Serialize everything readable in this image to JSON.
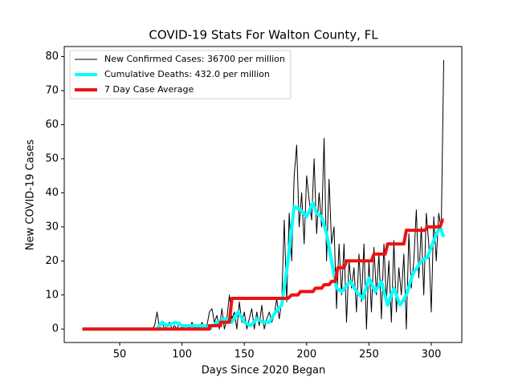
{
  "chart_data": {
    "type": "line",
    "title": "COVID-19 Stats For Walton County, FL",
    "x_label": "Days Since 2020 Began",
    "y_label": "New COVID-19 Cases",
    "xlim": [
      5.5,
      324.5
    ],
    "xticks": [
      50,
      100,
      150,
      200,
      250,
      300
    ],
    "ylim": [
      -3.95,
      82.95
    ],
    "yticks": [
      0,
      10,
      20,
      30,
      40,
      50,
      60,
      70,
      80
    ],
    "legend": "upper left",
    "series": [
      {
        "name": "New Confirmed Cases: 36700 per million",
        "color": "#000000",
        "width": 1,
        "x": [
          20,
          76,
          78,
          80,
          82,
          84,
          86,
          88,
          90,
          92,
          94,
          96,
          98,
          100,
          102,
          104,
          106,
          108,
          110,
          112,
          114,
          116,
          118,
          120,
          122,
          124,
          126,
          128,
          130,
          132,
          134,
          136,
          138,
          140,
          142,
          144,
          146,
          148,
          150,
          152,
          154,
          156,
          158,
          160,
          162,
          164,
          166,
          168,
          170,
          172,
          174,
          176,
          178,
          180,
          182,
          184,
          186,
          188,
          190,
          192,
          194,
          196,
          198,
          200,
          202,
          204,
          206,
          208,
          210,
          212,
          214,
          216,
          218,
          220,
          222,
          224,
          226,
          228,
          230,
          232,
          234,
          236,
          238,
          240,
          242,
          244,
          246,
          248,
          250,
          252,
          254,
          256,
          258,
          260,
          262,
          264,
          266,
          268,
          270,
          272,
          274,
          276,
          278,
          280,
          282,
          284,
          286,
          288,
          290,
          292,
          294,
          296,
          298,
          300,
          302,
          304,
          306,
          308,
          310
        ],
        "values": [
          0,
          0,
          1,
          5,
          0,
          2,
          0,
          1,
          2,
          0,
          1,
          0,
          2,
          0,
          1,
          1,
          0,
          2,
          0,
          1,
          0,
          2,
          0,
          1,
          5,
          6,
          2,
          4,
          0,
          6,
          0,
          3,
          10,
          3,
          5,
          0,
          8,
          2,
          5,
          0,
          3,
          6,
          0,
          5,
          1,
          7,
          0,
          3,
          5,
          2,
          4,
          9,
          3,
          8,
          32,
          8,
          34,
          20,
          45,
          54,
          30,
          40,
          25,
          45,
          38,
          32,
          50,
          28,
          40,
          30,
          56,
          20,
          44,
          25,
          30,
          6,
          25,
          10,
          25,
          2,
          20,
          12,
          18,
          5,
          22,
          8,
          25,
          0,
          20,
          5,
          24,
          10,
          22,
          3,
          25,
          8,
          20,
          2,
          26,
          5,
          18,
          10,
          22,
          0,
          28,
          12,
          20,
          35,
          15,
          30,
          10,
          34,
          25,
          5,
          33,
          20,
          34,
          29,
          79
        ]
      },
      {
        "name": "Cumulative Deaths: 432.0 per million",
        "color": "#00ffff",
        "width": 4,
        "x": [
          20,
          80,
          84,
          88,
          95,
          100,
          110,
          118,
          122,
          128,
          135,
          140,
          145,
          150,
          155,
          160,
          165,
          170,
          175,
          180,
          185,
          190,
          195,
          200,
          205,
          208,
          212,
          216,
          220,
          224,
          228,
          235,
          240,
          245,
          250,
          255,
          260,
          265,
          270,
          275,
          280,
          285,
          292,
          297,
          303,
          307,
          310
        ],
        "values": [
          0,
          0,
          2,
          1,
          2,
          1,
          1,
          1,
          0,
          2,
          3,
          2,
          5,
          2,
          1,
          3,
          2,
          2,
          5,
          7,
          20,
          36,
          35,
          33,
          37,
          34,
          33,
          28,
          20,
          12,
          11,
          14,
          11,
          9,
          15,
          11,
          14,
          7,
          12,
          7,
          10,
          16,
          20,
          21,
          27,
          30,
          27
        ]
      },
      {
        "name": "7 Day Case Average",
        "color": "#ee1111",
        "width": 4,
        "x": [
          20,
          122,
          122,
          131,
          131,
          138,
          140,
          185,
          188,
          193,
          195,
          205,
          207,
          212,
          214,
          218,
          220,
          223,
          225,
          230,
          232,
          252,
          254,
          263,
          265,
          278,
          280,
          295,
          297,
          307,
          309,
          310
        ],
        "values": [
          0,
          0,
          1,
          1,
          2,
          2,
          9,
          9,
          10,
          10,
          11,
          11,
          12,
          12,
          13,
          13,
          14,
          14,
          18,
          18,
          20,
          20,
          22,
          22,
          25,
          25,
          29,
          29,
          30,
          30,
          32,
          32
        ]
      }
    ]
  }
}
